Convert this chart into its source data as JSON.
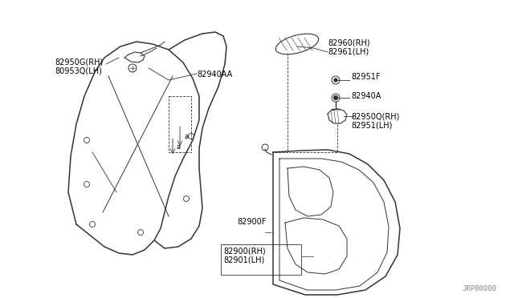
{
  "bg_color": "#ffffff",
  "watermark": "JRP80000",
  "line_color": "#333333",
  "text_color": "#000000",
  "label_82950G": "82950G(RH)\n80953Q(LH)",
  "label_82940AA": "82940AA",
  "label_82960": "82960(RH)\n82961(LH)",
  "label_82951F": "82951F",
  "label_82940A": "82940A",
  "label_82950Q": "82950Q(RH)\n82951(LH)",
  "label_82900F": "82900F",
  "label_82900": "82900(RH)\n82901(LH)"
}
